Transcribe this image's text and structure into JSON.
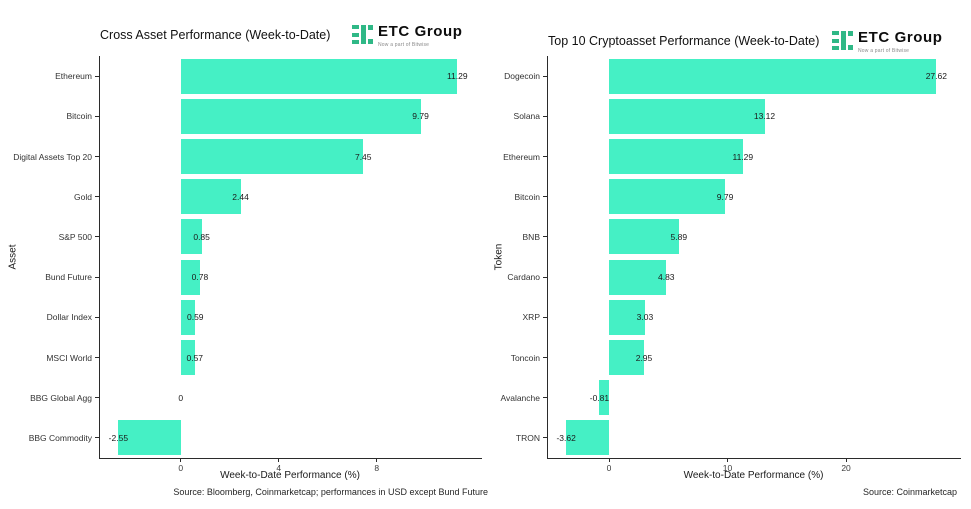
{
  "logo": {
    "text": "ETC Group",
    "tagline": "Now a part of Bitwise",
    "icon_color": "#2fb886"
  },
  "chart_data": [
    {
      "type": "bar",
      "orientation": "horizontal",
      "title": "Cross Asset Performance (Week-to-Date)",
      "xlabel": "Week-to-Date Performance (%)",
      "ylabel": "Asset",
      "source": "Source: Bloomberg, Coinmarketcap; performances in USD except Bund Future",
      "categories": [
        "Ethereum",
        "Bitcoin",
        "Digital Assets Top 20",
        "Gold",
        "S&P 500",
        "Bund Future",
        "Dollar Index",
        "MSCI World",
        "BBG Global Agg",
        "BBG Commodity"
      ],
      "values": [
        11.29,
        9.79,
        7.45,
        2.44,
        0.85,
        0.78,
        0.59,
        0.57,
        0,
        -2.55
      ],
      "value_labels": [
        "11.29",
        "9.79",
        "7.45",
        "2.44",
        "0.85",
        "0.78",
        "0.59",
        "0.57",
        "0",
        "-2.55"
      ],
      "x_ticks": [
        0,
        4,
        8
      ],
      "xlim": [
        -3.3,
        12.3
      ],
      "bar_color": "#45f0c5",
      "grid": false,
      "legend": false
    },
    {
      "type": "bar",
      "orientation": "horizontal",
      "title": "Top 10 Cryptoasset Performance (Week-to-Date)",
      "xlabel": "Week-to-Date Performance (%)",
      "ylabel": "Token",
      "source": "Source: Coinmarketcap",
      "categories": [
        "Dogecoin",
        "Solana",
        "Ethereum",
        "Bitcoin",
        "BNB",
        "Cardano",
        "XRP",
        "Toncoin",
        "Avalanche",
        "TRON"
      ],
      "values": [
        27.62,
        13.12,
        11.29,
        9.79,
        5.89,
        4.83,
        3.03,
        2.95,
        -0.81,
        -3.62
      ],
      "value_labels": [
        "27.62",
        "13.12",
        "11.29",
        "9.79",
        "5.89",
        "4.83",
        "3.03",
        "2.95",
        "-0.81",
        "-3.62"
      ],
      "x_ticks": [
        0,
        10,
        20
      ],
      "xlim": [
        -5.15,
        29.7
      ],
      "bar_color": "#45f0c5",
      "grid": false,
      "legend": false
    }
  ]
}
